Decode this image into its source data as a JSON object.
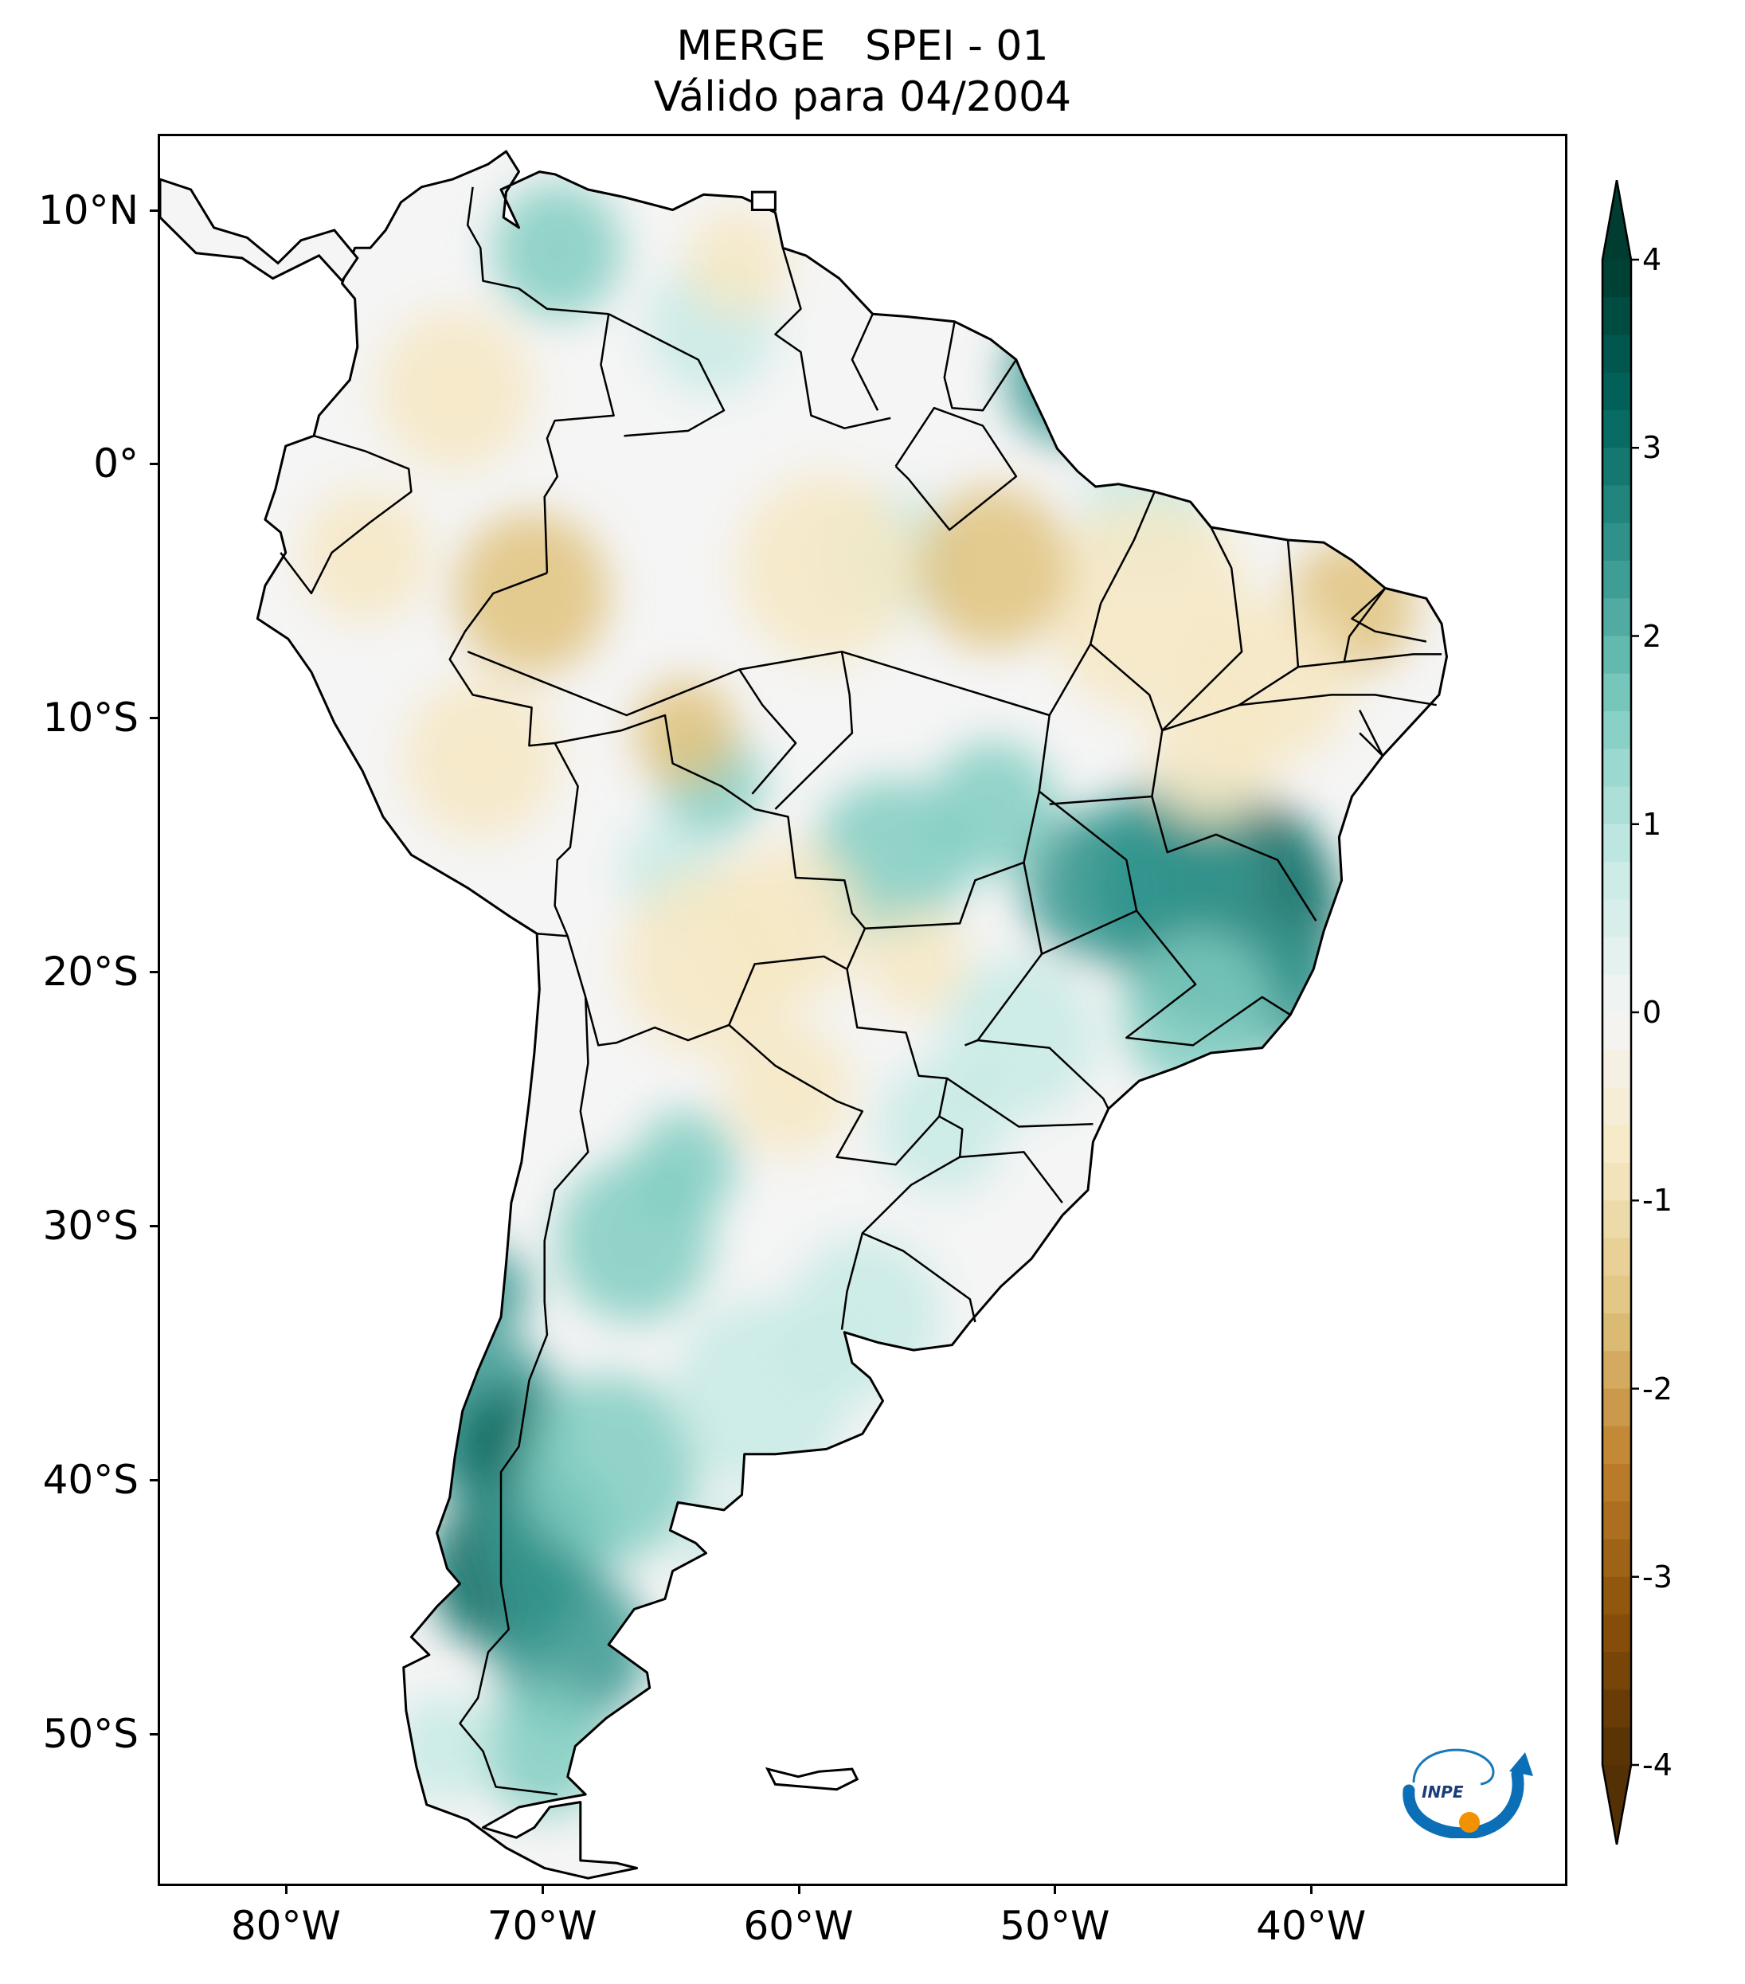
{
  "title": {
    "line1": "MERGE   SPEI - 01",
    "line2": "Válido para 04/2004"
  },
  "axes": {
    "y_ticks": [
      {
        "label": "10°N",
        "lat": 10
      },
      {
        "label": "0°",
        "lat": 0
      },
      {
        "label": "10°S",
        "lat": -10
      },
      {
        "label": "20°S",
        "lat": -20
      },
      {
        "label": "30°S",
        "lat": -30
      },
      {
        "label": "40°S",
        "lat": -40
      },
      {
        "label": "50°S",
        "lat": -50
      }
    ],
    "x_ticks": [
      {
        "label": "80°W",
        "lon": -80
      },
      {
        "label": "70°W",
        "lon": -70
      },
      {
        "label": "60°W",
        "lon": -60
      },
      {
        "label": "50°W",
        "lon": -50
      },
      {
        "label": "40°W",
        "lon": -40
      }
    ],
    "lon_range": [
      -85,
      -30
    ],
    "lat_range": [
      -56,
      13
    ]
  },
  "colorbar": {
    "ticks": [
      "4",
      "3",
      "2",
      "1",
      "0",
      "-1",
      "-2",
      "-3",
      "-4"
    ],
    "range": [
      -4,
      4
    ],
    "colors": {
      "dry_extreme": "#543005",
      "dry_strong": "#8c510a",
      "dry_moderate": "#bf812d",
      "dry_mild": "#dfc27d",
      "dry_light": "#f6e8c3",
      "neutral": "#f5f5f5",
      "wet_light": "#c7eae5",
      "wet_mild": "#80cdc1",
      "wet_moderate": "#35978f",
      "wet_strong": "#01665e",
      "wet_extreme": "#003c30"
    }
  },
  "logo": {
    "text": "INPE",
    "icon": "inpe-logo-icon"
  },
  "map": {
    "variable": "SPEI - 01",
    "source": "MERGE",
    "period": "04/2004"
  }
}
